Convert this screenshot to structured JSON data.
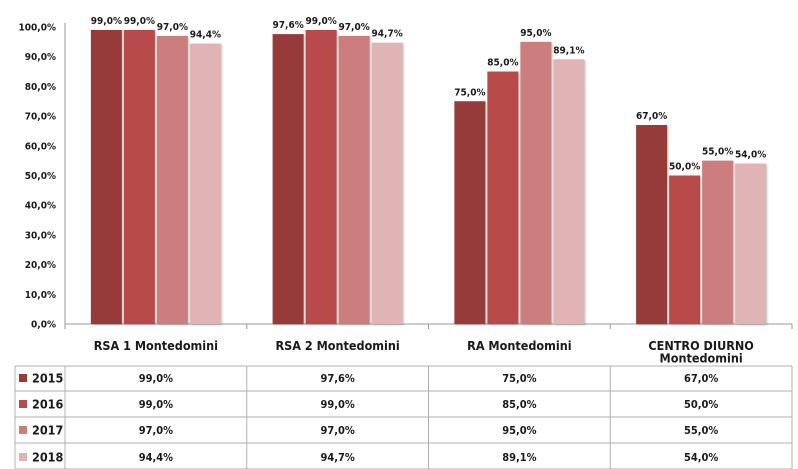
{
  "chart_data": {
    "type": "bar",
    "categories": [
      "RSA 1 Montedomini",
      "RSA 2 Montedomini",
      "RA Montedomini",
      "CENTRO DIURNO Montedomini"
    ],
    "category_lines": [
      [
        "RSA 1 Montedomini"
      ],
      [
        "RSA 2 Montedomini"
      ],
      [
        "RA Montedomini"
      ],
      [
        "CENTRO DIURNO",
        "Montedomini"
      ]
    ],
    "series": [
      {
        "name": "2015",
        "values": [
          99.0,
          97.6,
          75.0,
          67.0
        ],
        "labels": [
          "99,0%",
          "97,6%",
          "75,0%",
          "67,0%"
        ],
        "color": "#963a3a"
      },
      {
        "name": "2016",
        "values": [
          99.0,
          99.0,
          85.0,
          50.0
        ],
        "labels": [
          "99,0%",
          "99,0%",
          "85,0%",
          "50,0%"
        ],
        "color": "#b84a4a"
      },
      {
        "name": "2017",
        "values": [
          97.0,
          97.0,
          95.0,
          55.0
        ],
        "labels": [
          "97,0%",
          "97,0%",
          "95,0%",
          "55,0%"
        ],
        "color": "#cc7e7e"
      },
      {
        "name": "2018",
        "values": [
          94.4,
          94.7,
          89.1,
          54.0
        ],
        "labels": [
          "94,4%",
          "94,7%",
          "89,1%",
          "54,0%"
        ],
        "color": "#e0b4b4"
      }
    ],
    "ylim": [
      0,
      100
    ],
    "y_ticks": [
      "0,0%",
      "10,0%",
      "20,0%",
      "30,0%",
      "40,0%",
      "50,0%",
      "60,0%",
      "70,0%",
      "80,0%",
      "90,0%",
      "100,0%"
    ],
    "grid": false,
    "legend": "data-table",
    "data_table": [
      [
        "99,0%",
        "97,6%",
        "75,0%",
        "67,0%"
      ],
      [
        "99,0%",
        "99,0%",
        "85,0%",
        "50,0%"
      ],
      [
        "97,0%",
        "97,0%",
        "95,0%",
        "55,0%"
      ],
      [
        "94,4%",
        "94,7%",
        "89,1%",
        "54,0%"
      ]
    ]
  }
}
